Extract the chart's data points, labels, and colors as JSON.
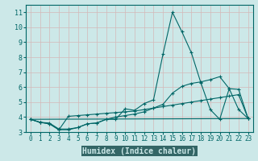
{
  "bg_color": "#cce8e8",
  "plot_bg_color": "#cce8e8",
  "grid_color": "#d4b8b8",
  "line_color": "#006666",
  "axis_color": "#006666",
  "bottom_bar_color": "#336666",
  "xlabel": "Humidex (Indice chaleur)",
  "xlim": [
    -0.5,
    23.5
  ],
  "ylim": [
    3,
    11.5
  ],
  "yticks": [
    3,
    4,
    5,
    6,
    7,
    8,
    9,
    10,
    11
  ],
  "xticks": [
    0,
    1,
    2,
    3,
    4,
    5,
    6,
    7,
    8,
    9,
    10,
    11,
    12,
    13,
    14,
    15,
    16,
    17,
    18,
    19,
    20,
    21,
    22,
    23
  ],
  "lines": [
    {
      "x": [
        0,
        1,
        2,
        3,
        4,
        5,
        6,
        7,
        8,
        9,
        10,
        11,
        12,
        13,
        14,
        15,
        16,
        17,
        18,
        19,
        20,
        21,
        22,
        23
      ],
      "y": [
        3.85,
        3.65,
        3.6,
        3.2,
        3.2,
        3.3,
        3.55,
        3.6,
        3.85,
        3.85,
        4.55,
        4.45,
        4.9,
        5.15,
        8.2,
        11.0,
        9.7,
        8.3,
        6.3,
        4.5,
        3.85,
        5.9,
        5.85,
        3.9
      ],
      "marker": true
    },
    {
      "x": [
        0,
        1,
        2,
        3,
        4,
        5,
        6,
        7,
        8,
        9,
        10,
        11,
        12,
        13,
        14,
        15,
        16,
        17,
        18,
        19,
        20,
        21,
        22,
        23
      ],
      "y": [
        3.85,
        3.65,
        3.55,
        3.15,
        3.15,
        3.3,
        3.55,
        3.6,
        3.85,
        4.0,
        4.1,
        4.2,
        4.35,
        4.6,
        4.85,
        5.6,
        6.05,
        6.25,
        6.35,
        6.5,
        6.7,
        5.9,
        4.5,
        3.9
      ],
      "marker": true
    },
    {
      "x": [
        0,
        1,
        2,
        3,
        4,
        5,
        6,
        7,
        8,
        9,
        10,
        11,
        12,
        13,
        14,
        15,
        16,
        17,
        18,
        19,
        20,
        21,
        22,
        23
      ],
      "y": [
        3.85,
        3.65,
        3.55,
        3.15,
        4.05,
        4.1,
        4.15,
        4.2,
        4.25,
        4.3,
        4.35,
        4.4,
        4.5,
        4.6,
        4.7,
        4.8,
        4.9,
        5.0,
        5.1,
        5.2,
        5.3,
        5.4,
        5.5,
        3.9
      ],
      "marker": true
    },
    {
      "x": [
        0,
        23
      ],
      "y": [
        3.85,
        3.9
      ],
      "marker": false
    }
  ],
  "xlabel_fontsize": 7,
  "tick_fontsize": 5.5,
  "linewidth": 0.8,
  "markersize": 3.0
}
